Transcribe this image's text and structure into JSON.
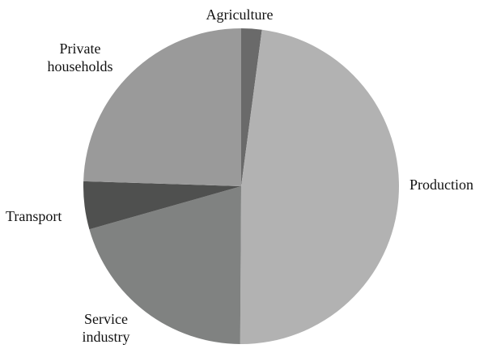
{
  "chart_data": {
    "type": "pie",
    "start_angle_deg": 0,
    "direction": "clockwise",
    "slices": [
      {
        "label": "Agriculture",
        "label_lines": [
          "Agriculture"
        ],
        "value": 2.1,
        "color": "#6a6a6a"
      },
      {
        "label": "Production",
        "label_lines": [
          "Production"
        ],
        "value": 48.0,
        "color": "#b2b2b2"
      },
      {
        "label": "Service industry",
        "label_lines": [
          "Service",
          "industry"
        ],
        "value": 20.5,
        "color": "#808281"
      },
      {
        "label": "Transport",
        "label_lines": [
          "Transport"
        ],
        "value": 4.9,
        "color": "#4f504f"
      },
      {
        "label": "Private households",
        "label_lines": [
          "Private",
          "households"
        ],
        "value": 24.5,
        "color": "#9a9a9a"
      }
    ]
  }
}
